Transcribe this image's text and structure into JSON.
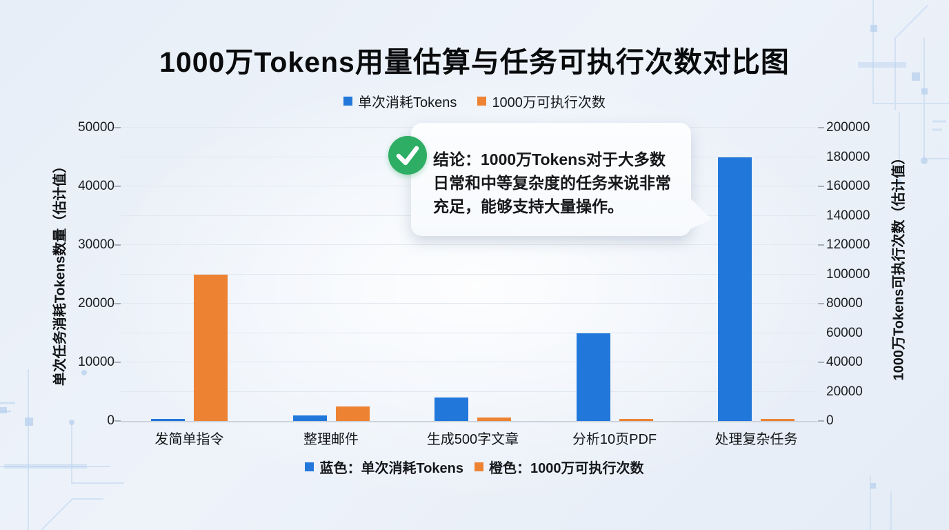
{
  "page": {
    "title": "1000万Tokens用量估算与任务可执行次数对比图"
  },
  "legend": {
    "items": [
      {
        "label": "单次消耗Tokens",
        "color": "#2277DB"
      },
      {
        "label": "1000万可执行次数",
        "color": "#ED8233"
      }
    ]
  },
  "annotation": {
    "icon": "check-icon",
    "icon_color": "#2EAD64",
    "line1": "结论：1000万Tokens对于大多数",
    "line2": "日常和中等复杂度的任务来说非常",
    "line3": "充足，能够支持大量操作。"
  },
  "footer": {
    "items": [
      {
        "label": "蓝色：单次消耗Tokens",
        "color": "#2277DB"
      },
      {
        "label": "橙色：1000万可执行次数",
        "color": "#ED8233"
      }
    ]
  },
  "colors": {
    "bar_blue": "#2277DB",
    "bar_orange": "#ED8233",
    "check_green": "#2EAD64",
    "gridline": "#e2e8ef",
    "background": "#ebf1f9"
  },
  "chart_data": {
    "type": "bar",
    "title": "1000万Tokens用量估算与任务可执行次数对比图",
    "categories": [
      "发简单指令",
      "整理邮件",
      "生成500字文章",
      "分析10页PDF",
      "处理复杂任务"
    ],
    "series": [
      {
        "name": "单次消耗Tokens",
        "axis": "left",
        "color": "#2277DB",
        "values": [
          100,
          1000,
          4000,
          15000,
          45000
        ]
      },
      {
        "name": "1000万可执行次数",
        "axis": "right",
        "color": "#ED8233",
        "values": [
          100000,
          10000,
          2500,
          667,
          222
        ]
      }
    ],
    "left_axis": {
      "title": "单次任务消耗Tokens数量（估计值）",
      "range": [
        0,
        50000
      ],
      "ticks": [
        0,
        10000,
        20000,
        30000,
        40000,
        50000
      ]
    },
    "right_axis": {
      "title": "1000万Tokens可执行次数（估计值）",
      "range": [
        0,
        200000
      ],
      "ticks": [
        0,
        20000,
        40000,
        60000,
        80000,
        100000,
        120000,
        140000,
        160000,
        180000,
        200000
      ]
    },
    "grid": true,
    "legend_position": "top"
  }
}
